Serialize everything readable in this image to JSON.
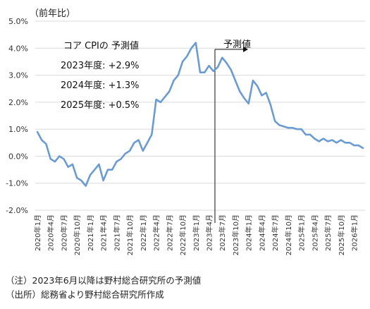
{
  "chart_data": {
    "type": "line",
    "unit_label": "（前年比）",
    "y_ticks": [
      "-2.0%",
      "-1.0%",
      "0.0%",
      "1.0%",
      "2.0%",
      "3.0%",
      "4.0%",
      "5.0%"
    ],
    "ylim": [
      -2.0,
      5.0
    ],
    "x_labels": [
      "2020年1月",
      "2020年4月",
      "2020年7月",
      "2020年10月",
      "2021年1月",
      "2021年4月",
      "2021年7月",
      "2021年10月",
      "2022年1月",
      "2022年4月",
      "2022年7月",
      "2022年10月",
      "2023年1月",
      "2023年4月",
      "2023年7月",
      "2023年10月",
      "2024年1月",
      "2024年4月",
      "2024年7月",
      "2024年10月",
      "2025年1月",
      "2025年4月",
      "2025年7月",
      "2025年10月",
      "2026年1月"
    ],
    "x_label_step_months": 3,
    "series": [
      {
        "color": "#6a9bd1",
        "values": [
          0.9,
          0.6,
          0.45,
          -0.1,
          -0.2,
          0.0,
          -0.1,
          -0.4,
          -0.3,
          -0.8,
          -0.9,
          -1.1,
          -0.7,
          -0.5,
          -0.3,
          -0.9,
          -0.5,
          -0.5,
          -0.2,
          -0.1,
          0.1,
          0.2,
          0.5,
          0.6,
          0.2,
          0.5,
          0.8,
          2.1,
          2.0,
          2.2,
          2.4,
          2.8,
          3.0,
          3.5,
          3.7,
          4.0,
          4.2,
          3.1,
          3.1,
          3.35,
          3.15,
          3.3,
          3.65,
          3.45,
          3.2,
          2.8,
          2.4,
          2.15,
          1.95,
          2.8,
          2.6,
          2.25,
          2.35,
          1.9,
          1.3,
          1.15,
          1.1,
          1.05,
          1.05,
          1.0,
          1.0,
          0.8,
          0.8,
          0.65,
          0.55,
          0.65,
          0.55,
          0.6,
          0.5,
          0.6,
          0.5,
          0.5,
          0.4,
          0.4,
          0.3
        ]
      }
    ],
    "forecast_start_index": 41,
    "forecast_label": "予測値",
    "annotation": {
      "title": "コア CPIの 予測値",
      "lines": [
        "2023年度: +2.9%",
        "2024年度: +1.3%",
        "2025年度: +0.5%"
      ]
    },
    "notes": [
      "（注）2023年6月以降は野村総合研究所の予測値",
      "（出所）総務省より野村総合研究所作成"
    ]
  }
}
